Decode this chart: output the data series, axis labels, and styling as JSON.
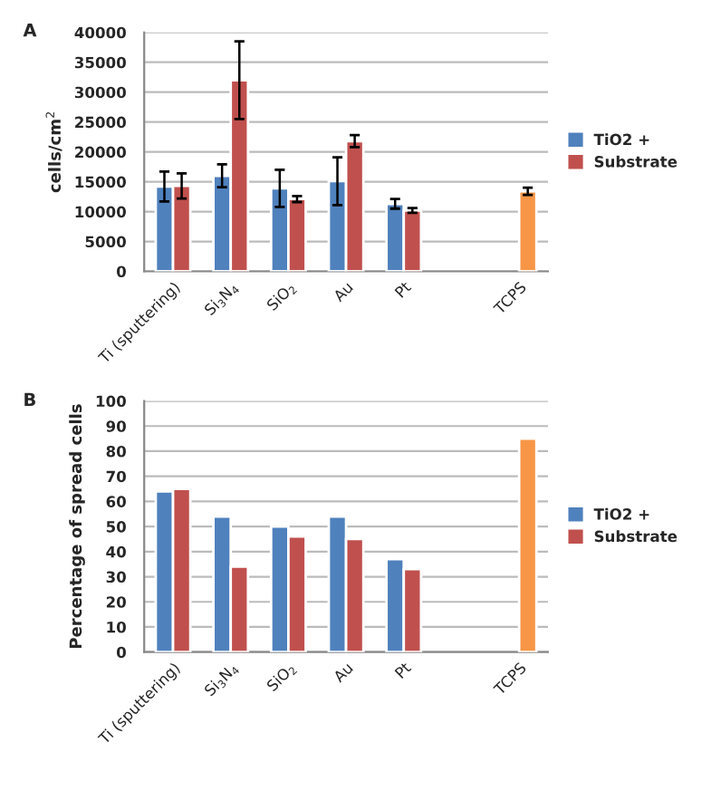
{
  "chart_data": [
    {
      "type": "bar",
      "title": "A",
      "ylabel": "cells/cm$^{2}$",
      "categories": [
        "Ti (sputtering)",
        "Si$_{3}$N$_{4}$",
        "SiO$_{2}$",
        "Au",
        "Pt",
        null,
        "TCPS"
      ],
      "series": [
        {
          "name": "TiO2 +",
          "color": "#4f81bd",
          "values": [
            14200,
            16000,
            13900,
            15100,
            11300,
            null,
            null
          ],
          "errors": [
            2500,
            1900,
            3100,
            4000,
            800,
            null,
            null
          ]
        },
        {
          "name": "Substrate",
          "color": "#c0504d",
          "colors": [
            "#c0504d",
            "#c0504d",
            "#c0504d",
            "#c0504d",
            "#c0504d",
            "#c0504d",
            "#f79646"
          ],
          "values": [
            14300,
            32000,
            12100,
            21800,
            10200,
            null,
            13400
          ],
          "errors": [
            2100,
            6500,
            500,
            1000,
            400,
            null,
            600
          ]
        }
      ],
      "ylim": [
        0,
        40000
      ],
      "yticks": [
        0,
        5000,
        10000,
        15000,
        20000,
        25000,
        30000,
        35000,
        40000
      ],
      "grid": "y",
      "legend": "right"
    },
    {
      "type": "bar",
      "title": "B",
      "ylabel": "Percentage of spread cells",
      "categories": [
        "Ti (sputtering)",
        "Si$_{3}$N$_{4}$",
        "SiO$_{2}$",
        "Au",
        "Pt",
        null,
        "TCPS"
      ],
      "series": [
        {
          "name": "TiO2 +",
          "color": "#4f81bd",
          "values": [
            64,
            54,
            50,
            54,
            37,
            null,
            null
          ]
        },
        {
          "name": "Substrate",
          "color": "#c0504d",
          "colors": [
            "#c0504d",
            "#c0504d",
            "#c0504d",
            "#c0504d",
            "#c0504d",
            "#c0504d",
            "#f79646"
          ],
          "values": [
            65,
            34,
            46,
            45,
            33,
            null,
            85
          ]
        }
      ],
      "ylim": [
        0,
        100
      ],
      "yticks": [
        0,
        10,
        20,
        30,
        40,
        50,
        60,
        70,
        80,
        90,
        100
      ],
      "grid": "y",
      "legend": "right"
    }
  ]
}
